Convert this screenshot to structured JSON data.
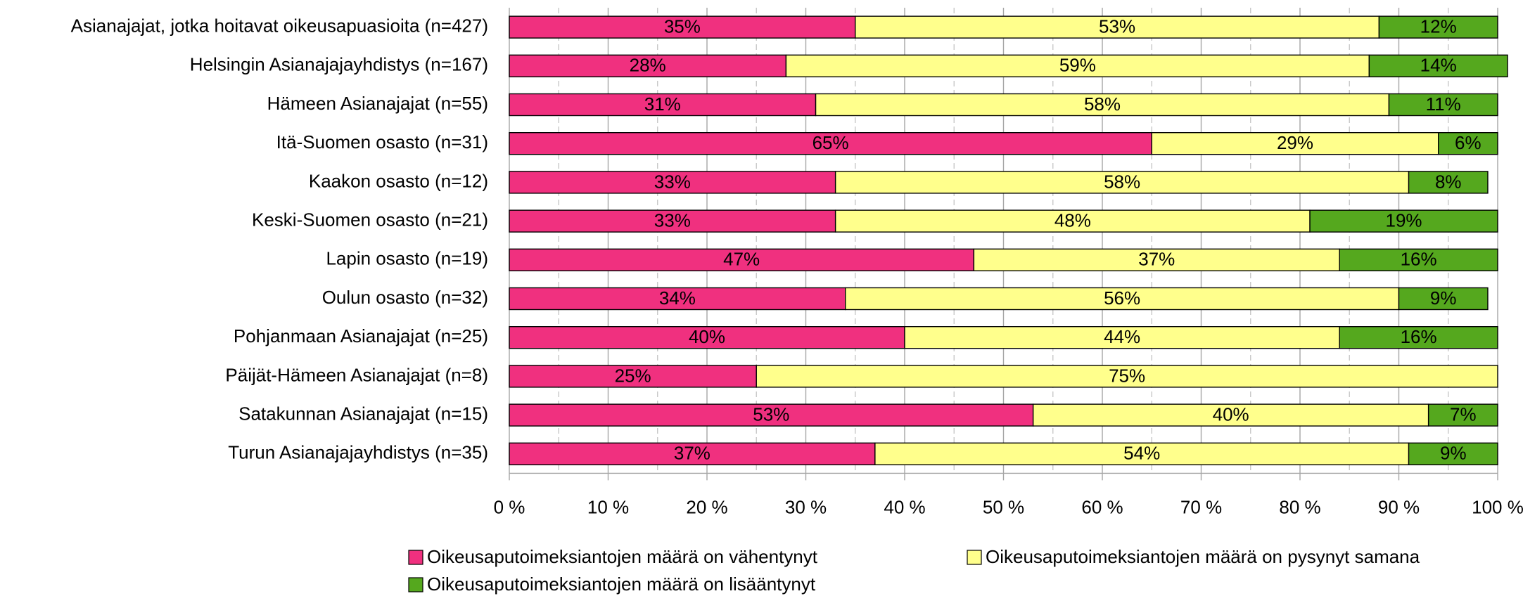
{
  "chart_data": {
    "type": "stacked_barh",
    "categories": [
      "Asianajajat, jotka hoitavat oikeusapuasioita (n=427)",
      "Helsingin Asianajajayhdistys (n=167)",
      "Hämeen Asianajajat (n=55)",
      "Itä-Suomen osasto (n=31)",
      "Kaakon osasto (n=12)",
      "Keski-Suomen osasto (n=21)",
      "Lapin osasto (n=19)",
      "Oulun osasto (n=32)",
      "Pohjanmaan Asianajajat (n=25)",
      "Päijät-Hämeen Asianajajat (n=8)",
      "Satakunnan Asianajajat (n=15)",
      "Turun Asianajajayhdistys (n=35)"
    ],
    "series": [
      {
        "name": "Oikeusaputoimeksiantojen määrä on vähentynyt",
        "color": "#f0307f",
        "values": [
          35,
          28,
          31,
          65,
          33,
          33,
          47,
          34,
          40,
          25,
          53,
          37
        ],
        "value_labels": [
          "35%",
          "28%",
          "31%",
          "65%",
          "33%",
          "33%",
          "47%",
          "34%",
          "40%",
          "25%",
          "53%",
          "37%"
        ]
      },
      {
        "name": "Oikeusaputoimeksiantojen määrä on pysynyt samana",
        "color": "#ffff8c",
        "values": [
          53,
          59,
          58,
          29,
          58,
          48,
          37,
          56,
          44,
          75,
          40,
          54
        ],
        "value_labels": [
          "53%",
          "59%",
          "58%",
          "29%",
          "58%",
          "48%",
          "37%",
          "56%",
          "44%",
          "75%",
          "40%",
          "54%"
        ]
      },
      {
        "name": "Oikeusaputoimeksiantojen määrä on lisääntynyt",
        "color": "#55a81e",
        "values": [
          12,
          14,
          11,
          6,
          8,
          19,
          16,
          9,
          16,
          null,
          7,
          9
        ],
        "value_labels": [
          "12%",
          "14%",
          "11%",
          "6%",
          "8%",
          "19%",
          "16%",
          "9%",
          "16%",
          null,
          "7%",
          "9%"
        ]
      }
    ],
    "xlim": [
      0,
      100
    ],
    "xticks": [
      {
        "value": 0,
        "label": "0 %"
      },
      {
        "value": 10,
        "label": "10 %"
      },
      {
        "value": 20,
        "label": "20 %"
      },
      {
        "value": 30,
        "label": "30 %"
      },
      {
        "value": 40,
        "label": "40 %"
      },
      {
        "value": 50,
        "label": "50 %"
      },
      {
        "value": 60,
        "label": "60 %"
      },
      {
        "value": 70,
        "label": "70 %"
      },
      {
        "value": 80,
        "label": "80 %"
      },
      {
        "value": 90,
        "label": "90 %"
      },
      {
        "value": 100,
        "label": "100 %"
      }
    ],
    "grid": true
  }
}
